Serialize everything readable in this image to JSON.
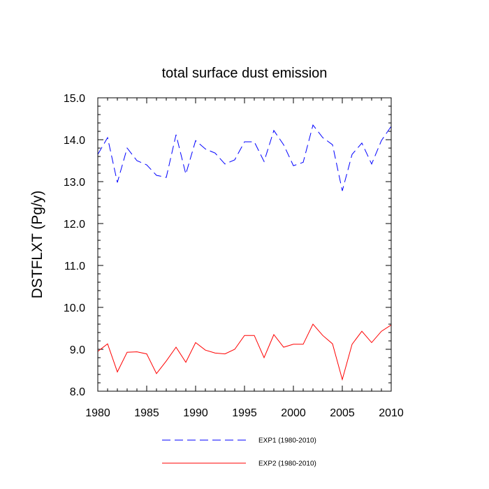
{
  "chart_data": {
    "type": "line",
    "title": "total surface dust emission",
    "xlabel": "",
    "ylabel": "DSTFLXT  (Pg/y)",
    "xlim": [
      1980,
      2010
    ],
    "ylim": [
      8.0,
      15.0
    ],
    "x_ticks": [
      1980,
      1985,
      1990,
      1995,
      2000,
      2005,
      2010
    ],
    "x_tick_labels": [
      "1980",
      "1985",
      "1990",
      "1995",
      "2000",
      "2005",
      "2010"
    ],
    "y_ticks": [
      8.0,
      9.0,
      10.0,
      11.0,
      12.0,
      13.0,
      14.0,
      15.0
    ],
    "y_tick_labels": [
      "8.0",
      "9.0",
      "10.0",
      "11.0",
      "12.0",
      "13.0",
      "14.0",
      "15.0"
    ],
    "x": [
      1980,
      1981,
      1982,
      1983,
      1984,
      1985,
      1986,
      1987,
      1988,
      1989,
      1990,
      1991,
      1992,
      1993,
      1994,
      1995,
      1996,
      1997,
      1998,
      1999,
      2000,
      2001,
      2002,
      2003,
      2004,
      2005,
      2006,
      2007,
      2008,
      2009,
      2010
    ],
    "series": [
      {
        "name": "EXP1 (1980-2010)",
        "color": "#0000ff",
        "style": "dashed",
        "values": [
          13.65,
          14.05,
          12.98,
          13.8,
          13.5,
          13.4,
          13.15,
          13.1,
          14.12,
          13.18,
          13.98,
          13.78,
          13.68,
          13.42,
          13.52,
          13.95,
          13.95,
          13.48,
          14.22,
          13.88,
          13.38,
          13.46,
          14.35,
          14.05,
          13.88,
          12.78,
          13.65,
          13.92,
          13.42,
          13.98,
          14.32
        ]
      },
      {
        "name": "EXP2 (1980-2010)",
        "color": "#ff0000",
        "style": "solid",
        "values": [
          8.95,
          9.13,
          8.46,
          8.93,
          8.94,
          8.89,
          8.42,
          8.72,
          9.05,
          8.69,
          9.16,
          8.98,
          8.91,
          8.89,
          9.0,
          9.33,
          9.33,
          8.8,
          9.35,
          9.05,
          9.12,
          9.12,
          9.6,
          9.33,
          9.13,
          8.28,
          9.12,
          9.43,
          9.16,
          9.43,
          9.58
        ]
      }
    ],
    "legend_position": "bottom"
  }
}
